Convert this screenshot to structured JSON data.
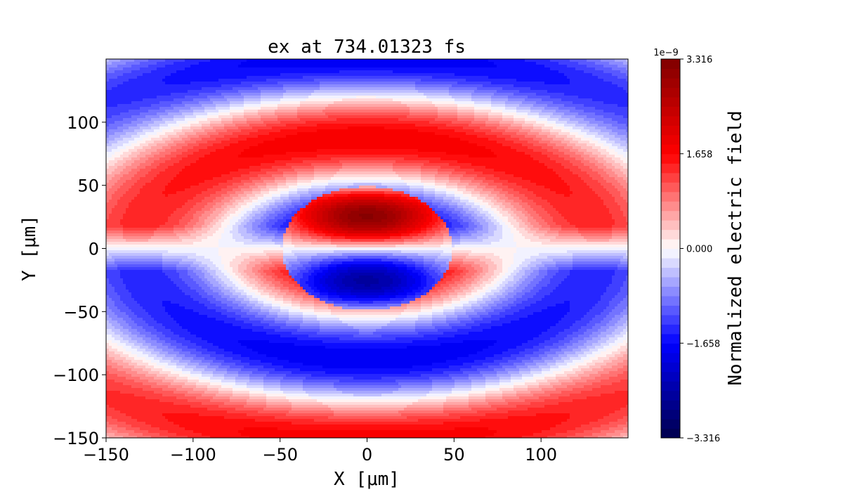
{
  "chart_data": {
    "type": "heatmap",
    "title": "ex at 734.01323 fs",
    "xlabel": "X [μm]",
    "ylabel": "Y [μm]",
    "xlim": [
      -150,
      150
    ],
    "ylim": [
      -150,
      150
    ],
    "xticks": [
      -150,
      -100,
      -50,
      0,
      50,
      100
    ],
    "yticks": [
      -150,
      -100,
      -50,
      0,
      50,
      100
    ],
    "xtick_labels": [
      "−150",
      "−100",
      "−50",
      "0",
      "50",
      "100"
    ],
    "ytick_labels": [
      "−150",
      "−100",
      "−50",
      "0",
      "50",
      "100"
    ],
    "colorbar": {
      "label": "Normalized electric field",
      "offset_text": "1e−9",
      "vmin": -3.316,
      "vmax": 3.316,
      "ticks": [
        -3.316,
        -1.658,
        0.0,
        1.658,
        3.316
      ],
      "tick_labels": [
        "−3.316",
        "−1.658",
        "0.000",
        "1.658",
        "3.316"
      ],
      "colormap": "seismic",
      "levels": 40
    },
    "field_features": {
      "central_disk_radius": 50,
      "central_disk_peak_positive": 3.0,
      "central_disk_peak_negative": -2.4,
      "outer_lobe_top_center_y": 110,
      "outer_lobe_bottom_center_y": -85
    },
    "colors": {
      "negative_extreme": "#00004c",
      "negative": "#0000ff",
      "zero": "#ffffff",
      "positive": "#ff0000",
      "positive_extreme": "#800000"
    }
  }
}
